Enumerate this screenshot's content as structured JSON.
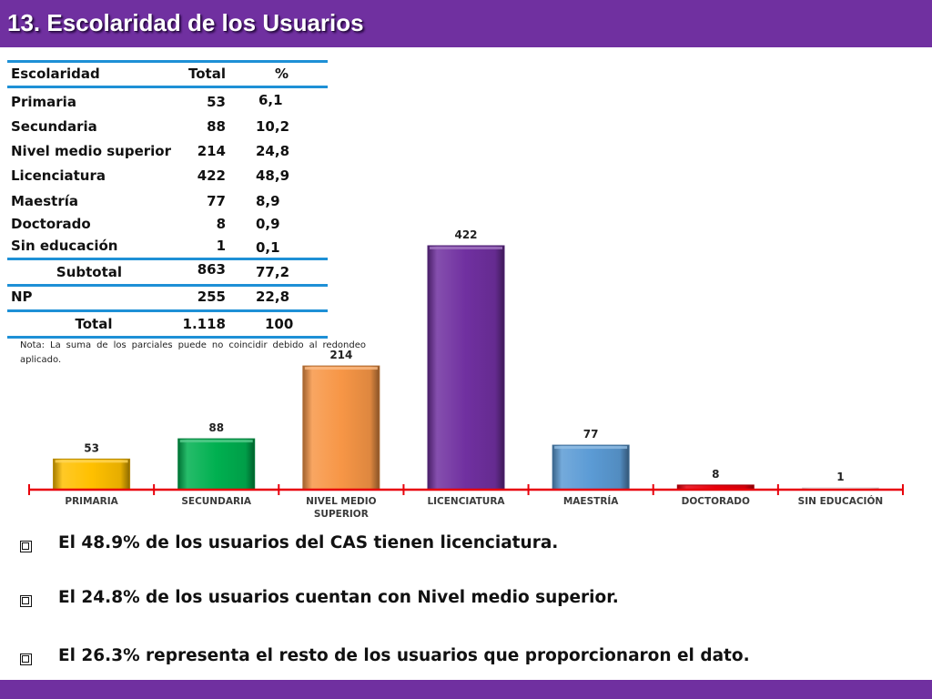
{
  "title": "13. Escolaridad de los Usuarios",
  "table": {
    "headers": [
      "Escolaridad",
      "Total",
      "%"
    ],
    "rows": [
      {
        "name": "Primaria",
        "total": "53",
        "pct": "6,1"
      },
      {
        "name": "Secundaria",
        "total": "88",
        "pct": "10,2"
      },
      {
        "name": "Nivel medio superior",
        "total": "214",
        "pct": "24,8"
      },
      {
        "name": "Licenciatura",
        "total": "422",
        "pct": "48,9"
      },
      {
        "name": "Maestría",
        "total": "77",
        "pct": "8,9"
      },
      {
        "name": "Doctorado",
        "total": "8",
        "pct": "0,9"
      },
      {
        "name": "Sin educación",
        "total": "1",
        "pct": "0,1"
      }
    ],
    "subtotal": {
      "name": "Subtotal",
      "total": "863",
      "pct": "77,2"
    },
    "np": {
      "name": "NP",
      "total": "255",
      "pct": "22,8"
    },
    "total": {
      "name": "Total",
      "total": "1.118",
      "pct": "100"
    },
    "note": "Nota: La suma de los parciales puede no coincidir debido al redondeo aplicado."
  },
  "chart_data": {
    "type": "bar",
    "categories": [
      "PRIMARIA",
      "SECUNDARIA",
      "NIVEL MEDIO SUPERIOR",
      "LICENCIATURA",
      "MAESTRÍA",
      "DOCTORADO",
      "SIN EDUCACIÓN"
    ],
    "values": [
      53,
      88,
      214,
      422,
      77,
      8,
      1
    ],
    "colors": [
      "#FFC000",
      "#00B050",
      "#F79646",
      "#7030A0",
      "#5B9BD5",
      "#E8000B",
      "#FFFFFF"
    ],
    "axis_color": "#E8000B",
    "title": "",
    "xlabel": "",
    "ylabel": "",
    "ylim": [
      0,
      422
    ],
    "grid": false,
    "legend": "none"
  },
  "bullets": [
    "El 48.9% de los usuarios del CAS tienen licenciatura.",
    "El 24.8% de los usuarios cuentan con Nivel medio superior.",
    "El  26.3% representa el resto de los usuarios que proporcionaron el dato."
  ],
  "colors": {
    "header_band": "#7030A0",
    "table_rule": "#1E90D6"
  },
  "icons": {
    "bullet": "checkbox-square-icon"
  }
}
